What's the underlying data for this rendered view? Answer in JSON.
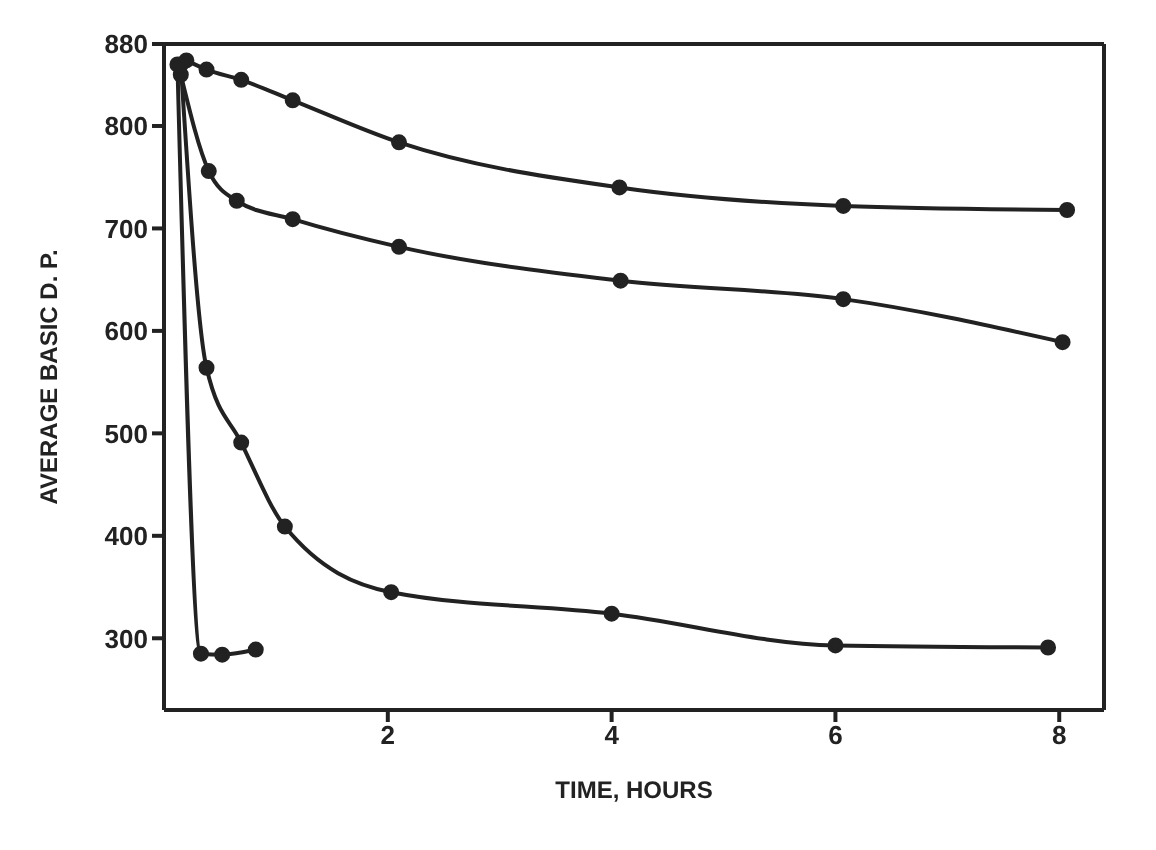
{
  "chart_data": {
    "type": "line",
    "xlabel": "TIME, HOURS",
    "ylabel": "AVERAGE BASIC D. P.",
    "xlim": [
      0,
      8.4
    ],
    "xticks": [
      2,
      4,
      6,
      8
    ],
    "ylim": [
      230,
      880
    ],
    "yticks": [
      300,
      400,
      500,
      600,
      700,
      800,
      880
    ],
    "marker": "circle",
    "line_style": "solid",
    "series": [
      {
        "color": "#222222",
        "x": [
          0.2,
          0.38,
          0.69,
          1.15,
          2.1,
          4.07,
          6.07,
          8.07
        ],
        "values": [
          864,
          855,
          845,
          825,
          784,
          740,
          722,
          718
        ]
      },
      {
        "color": "#222222",
        "x": [
          0.15,
          0.4,
          0.65,
          1.15,
          2.1,
          4.08,
          6.07,
          8.03
        ],
        "values": [
          850,
          756,
          727,
          709,
          682,
          649,
          631,
          589
        ]
      },
      {
        "color": "#222222",
        "x": [
          0.15,
          0.38,
          0.69,
          1.08,
          2.03,
          4.0,
          6.0,
          7.9
        ],
        "values": [
          860,
          564,
          491,
          409,
          345,
          324,
          293,
          291
        ]
      },
      {
        "color": "#222222",
        "x": [
          0.12,
          0.33,
          0.52,
          0.82
        ],
        "values": [
          860,
          285,
          284,
          289
        ]
      }
    ]
  }
}
